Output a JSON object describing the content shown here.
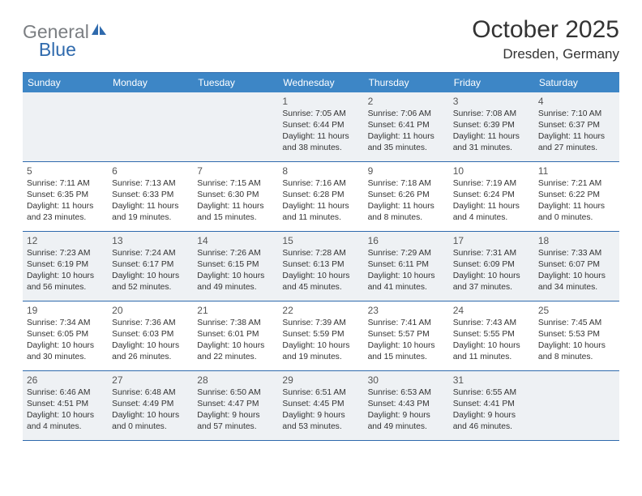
{
  "logo": {
    "text1": "General",
    "text2": "Blue"
  },
  "title": "October 2025",
  "subtitle": "Dresden, Germany",
  "colors": {
    "header_bg": "#3d86c6",
    "border": "#2f6aad",
    "shade_bg": "#eef1f4",
    "text": "#333333",
    "logo_gray": "#7b7e82",
    "logo_blue": "#2f6aad"
  },
  "day_names": [
    "Sunday",
    "Monday",
    "Tuesday",
    "Wednesday",
    "Thursday",
    "Friday",
    "Saturday"
  ],
  "weeks": [
    [
      {
        "n": "",
        "sr": "",
        "ss": "",
        "dl": ""
      },
      {
        "n": "",
        "sr": "",
        "ss": "",
        "dl": ""
      },
      {
        "n": "",
        "sr": "",
        "ss": "",
        "dl": ""
      },
      {
        "n": "1",
        "sr": "Sunrise: 7:05 AM",
        "ss": "Sunset: 6:44 PM",
        "dl": "Daylight: 11 hours and 38 minutes."
      },
      {
        "n": "2",
        "sr": "Sunrise: 7:06 AM",
        "ss": "Sunset: 6:41 PM",
        "dl": "Daylight: 11 hours and 35 minutes."
      },
      {
        "n": "3",
        "sr": "Sunrise: 7:08 AM",
        "ss": "Sunset: 6:39 PM",
        "dl": "Daylight: 11 hours and 31 minutes."
      },
      {
        "n": "4",
        "sr": "Sunrise: 7:10 AM",
        "ss": "Sunset: 6:37 PM",
        "dl": "Daylight: 11 hours and 27 minutes."
      }
    ],
    [
      {
        "n": "5",
        "sr": "Sunrise: 7:11 AM",
        "ss": "Sunset: 6:35 PM",
        "dl": "Daylight: 11 hours and 23 minutes."
      },
      {
        "n": "6",
        "sr": "Sunrise: 7:13 AM",
        "ss": "Sunset: 6:33 PM",
        "dl": "Daylight: 11 hours and 19 minutes."
      },
      {
        "n": "7",
        "sr": "Sunrise: 7:15 AM",
        "ss": "Sunset: 6:30 PM",
        "dl": "Daylight: 11 hours and 15 minutes."
      },
      {
        "n": "8",
        "sr": "Sunrise: 7:16 AM",
        "ss": "Sunset: 6:28 PM",
        "dl": "Daylight: 11 hours and 11 minutes."
      },
      {
        "n": "9",
        "sr": "Sunrise: 7:18 AM",
        "ss": "Sunset: 6:26 PM",
        "dl": "Daylight: 11 hours and 8 minutes."
      },
      {
        "n": "10",
        "sr": "Sunrise: 7:19 AM",
        "ss": "Sunset: 6:24 PM",
        "dl": "Daylight: 11 hours and 4 minutes."
      },
      {
        "n": "11",
        "sr": "Sunrise: 7:21 AM",
        "ss": "Sunset: 6:22 PM",
        "dl": "Daylight: 11 hours and 0 minutes."
      }
    ],
    [
      {
        "n": "12",
        "sr": "Sunrise: 7:23 AM",
        "ss": "Sunset: 6:19 PM",
        "dl": "Daylight: 10 hours and 56 minutes."
      },
      {
        "n": "13",
        "sr": "Sunrise: 7:24 AM",
        "ss": "Sunset: 6:17 PM",
        "dl": "Daylight: 10 hours and 52 minutes."
      },
      {
        "n": "14",
        "sr": "Sunrise: 7:26 AM",
        "ss": "Sunset: 6:15 PM",
        "dl": "Daylight: 10 hours and 49 minutes."
      },
      {
        "n": "15",
        "sr": "Sunrise: 7:28 AM",
        "ss": "Sunset: 6:13 PM",
        "dl": "Daylight: 10 hours and 45 minutes."
      },
      {
        "n": "16",
        "sr": "Sunrise: 7:29 AM",
        "ss": "Sunset: 6:11 PM",
        "dl": "Daylight: 10 hours and 41 minutes."
      },
      {
        "n": "17",
        "sr": "Sunrise: 7:31 AM",
        "ss": "Sunset: 6:09 PM",
        "dl": "Daylight: 10 hours and 37 minutes."
      },
      {
        "n": "18",
        "sr": "Sunrise: 7:33 AM",
        "ss": "Sunset: 6:07 PM",
        "dl": "Daylight: 10 hours and 34 minutes."
      }
    ],
    [
      {
        "n": "19",
        "sr": "Sunrise: 7:34 AM",
        "ss": "Sunset: 6:05 PM",
        "dl": "Daylight: 10 hours and 30 minutes."
      },
      {
        "n": "20",
        "sr": "Sunrise: 7:36 AM",
        "ss": "Sunset: 6:03 PM",
        "dl": "Daylight: 10 hours and 26 minutes."
      },
      {
        "n": "21",
        "sr": "Sunrise: 7:38 AM",
        "ss": "Sunset: 6:01 PM",
        "dl": "Daylight: 10 hours and 22 minutes."
      },
      {
        "n": "22",
        "sr": "Sunrise: 7:39 AM",
        "ss": "Sunset: 5:59 PM",
        "dl": "Daylight: 10 hours and 19 minutes."
      },
      {
        "n": "23",
        "sr": "Sunrise: 7:41 AM",
        "ss": "Sunset: 5:57 PM",
        "dl": "Daylight: 10 hours and 15 minutes."
      },
      {
        "n": "24",
        "sr": "Sunrise: 7:43 AM",
        "ss": "Sunset: 5:55 PM",
        "dl": "Daylight: 10 hours and 11 minutes."
      },
      {
        "n": "25",
        "sr": "Sunrise: 7:45 AM",
        "ss": "Sunset: 5:53 PM",
        "dl": "Daylight: 10 hours and 8 minutes."
      }
    ],
    [
      {
        "n": "26",
        "sr": "Sunrise: 6:46 AM",
        "ss": "Sunset: 4:51 PM",
        "dl": "Daylight: 10 hours and 4 minutes."
      },
      {
        "n": "27",
        "sr": "Sunrise: 6:48 AM",
        "ss": "Sunset: 4:49 PM",
        "dl": "Daylight: 10 hours and 0 minutes."
      },
      {
        "n": "28",
        "sr": "Sunrise: 6:50 AM",
        "ss": "Sunset: 4:47 PM",
        "dl": "Daylight: 9 hours and 57 minutes."
      },
      {
        "n": "29",
        "sr": "Sunrise: 6:51 AM",
        "ss": "Sunset: 4:45 PM",
        "dl": "Daylight: 9 hours and 53 minutes."
      },
      {
        "n": "30",
        "sr": "Sunrise: 6:53 AM",
        "ss": "Sunset: 4:43 PM",
        "dl": "Daylight: 9 hours and 49 minutes."
      },
      {
        "n": "31",
        "sr": "Sunrise: 6:55 AM",
        "ss": "Sunset: 4:41 PM",
        "dl": "Daylight: 9 hours and 46 minutes."
      },
      {
        "n": "",
        "sr": "",
        "ss": "",
        "dl": ""
      }
    ]
  ]
}
